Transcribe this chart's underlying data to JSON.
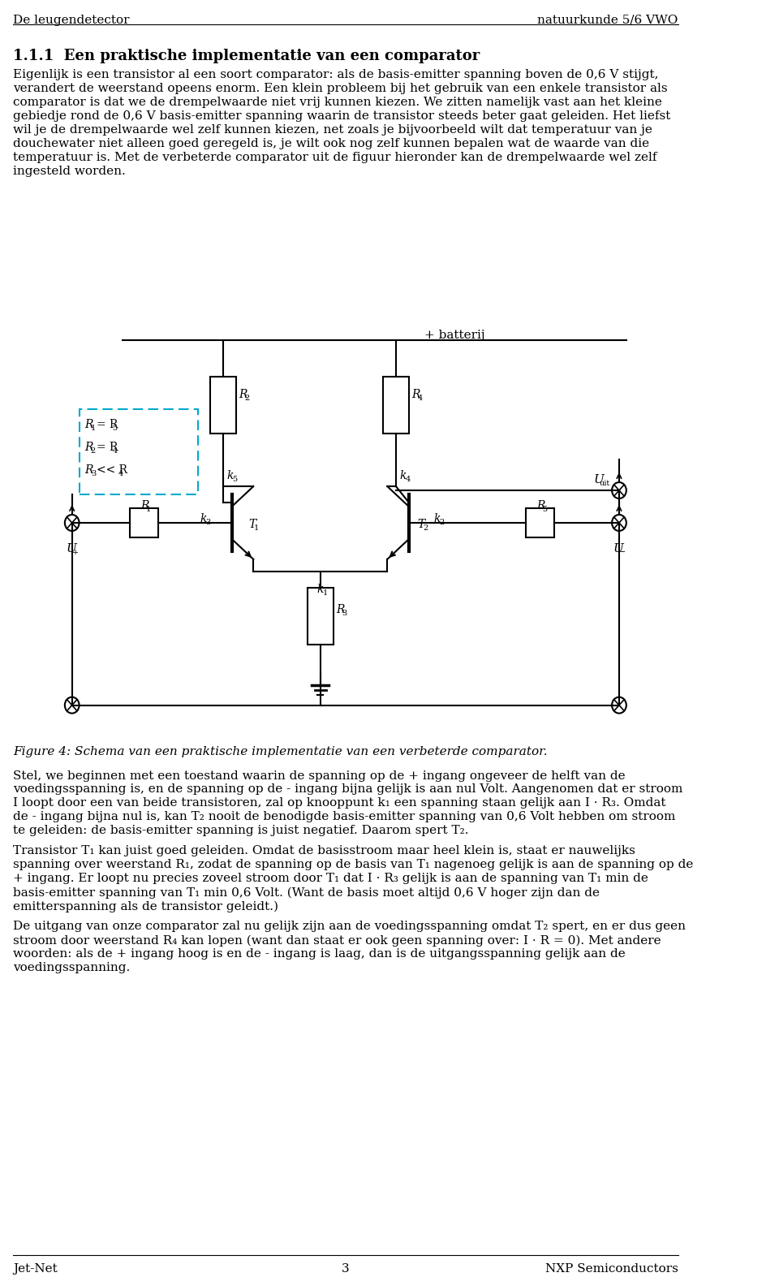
{
  "header_left": "De leugendetector",
  "header_right": "natuurkunde 5/6 VWO",
  "footer_left": "Jet-Net",
  "footer_center": "3",
  "footer_right": "NXP Semiconductors",
  "section_title": "1.1.1  Een praktische implementatie van een comparator",
  "paragraphs": [
    "Eigenlijk is een transistor al een soort comparator: als de basis-emitter spanning boven de 0,6 V stijgt, verandert de weerstand opeens enorm. Een klein probleem bij het gebruik van een enkele transistor als comparator is dat we de drempelwaarde niet vrij kunnen kiezen. We zitten namelijk vast aan het kleine gebiedje rond de 0,6 V basis-emitter spanning waarin de transistor steeds beter gaat geleiden. Het liefst wil je de drempelwaarde wel zelf kunnen kiezen, net zoals je bijvoorbeeld wilt dat temperatuur van je douchewater niet alleen goed geregeld is, je wilt ook nog zelf kunnen bepalen wat de waarde van die temperatuur is. Met de verbeterde comparator uit de figuur hieronder kan de drempelwaarde wel zelf ingesteld worden.",
    "Figure 4: Schema van een praktische implementatie van een verbeterde comparator.",
    "Stel, we beginnen met een toestand waarin de spanning op de + ingang ongeveer de helft van de voedingsspanning is, en de spanning op de - ingang bijna gelijk is aan nul Volt. Aangenomen dat er stroom I loopt door een van beide transistoren, zal op knooppunt k₁ een spanning staan gelijk aan I · R₃. Omdat de - ingang bijna nul is, kan T₂ nooit de benodigde basis-emitter spanning van 0,6 Volt hebben om stroom te geleiden: de basis-emitter spanning is juist negatief. Daarom spert T₂.",
    "Transistor T₁ kan juist goed geleiden. Omdat de basisstroom maar heel klein is, staat er nauwelijks spanning over weerstand R₁, zodat de spanning op de basis van T₁ nagenoeg gelijk is aan de spanning op de + ingang. Er loopt nu precies zoveel stroom door T₁ dat I · R₃ gelijk is aan de spanning van T₁ min de basis-emitter spanning van T₁ min 0,6 Volt. (Want de basis moet altijd 0,6 V hoger zijn dan de emitterspanning als de transistor geleidt.)",
    "De uitgang van onze comparator zal nu gelijk zijn aan de voedingsspanning omdat T₂ spert, en er dus geen stroom door weerstand R₄ kan lopen (want dan staat er ook geen spanning over: I · R = 0). Met andere woorden: als de + ingang hoog is en de - ingang is laag, dan is de uitgangsspanning gelijk aan de voedingsspanning."
  ],
  "background_color": "#ffffff",
  "text_color": "#000000",
  "circuit_color": "#000000",
  "dashed_box_color": "#00aacc"
}
